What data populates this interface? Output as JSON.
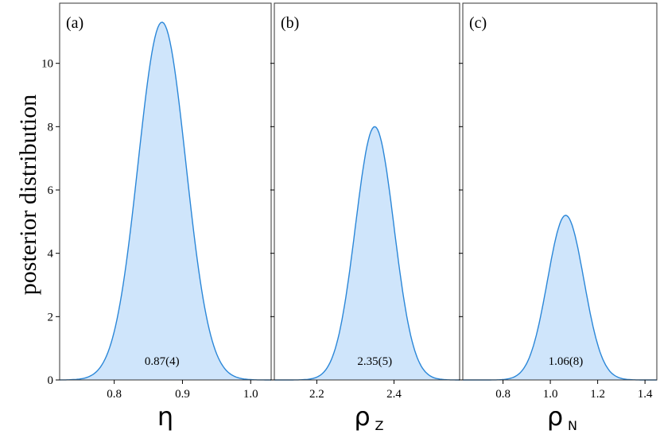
{
  "colors": {
    "fill": "#cfe5fb",
    "line": "#2b87d8",
    "frame": "#333333"
  },
  "y_axis": {
    "label": "posterior distribution",
    "ticks": [
      "0",
      "2",
      "4",
      "6",
      "8",
      "10"
    ]
  },
  "chart_data": [
    {
      "type": "area",
      "panel_label": "(a)",
      "xlabel": "η",
      "xlabel_sub": "",
      "annotation": "0.87(4)",
      "xlim": [
        0.72,
        1.03
      ],
      "ylim": [
        0,
        11.9
      ],
      "xticks": [
        "0.8",
        "0.9",
        "1.0"
      ],
      "mean": 0.87,
      "sd": 0.035,
      "peak": 11.3
    },
    {
      "type": "area",
      "panel_label": "(b)",
      "xlabel": "ρ",
      "xlabel_sub": "Z",
      "annotation": "2.35(5)",
      "xlim": [
        2.09,
        2.57
      ],
      "ylim": [
        0,
        11.9
      ],
      "xticks": [
        "2.2",
        "2.4"
      ],
      "mean": 2.35,
      "sd": 0.05,
      "peak": 8.0
    },
    {
      "type": "area",
      "panel_label": "(c)",
      "xlabel": "ρ",
      "xlabel_sub": "N",
      "annotation": "1.06(8)",
      "xlim": [
        0.63,
        1.45
      ],
      "ylim": [
        0,
        11.9
      ],
      "xticks": [
        "0.8",
        "1.0",
        "1.2",
        "1.4"
      ],
      "mean": 1.065,
      "sd": 0.077,
      "peak": 5.2
    }
  ]
}
